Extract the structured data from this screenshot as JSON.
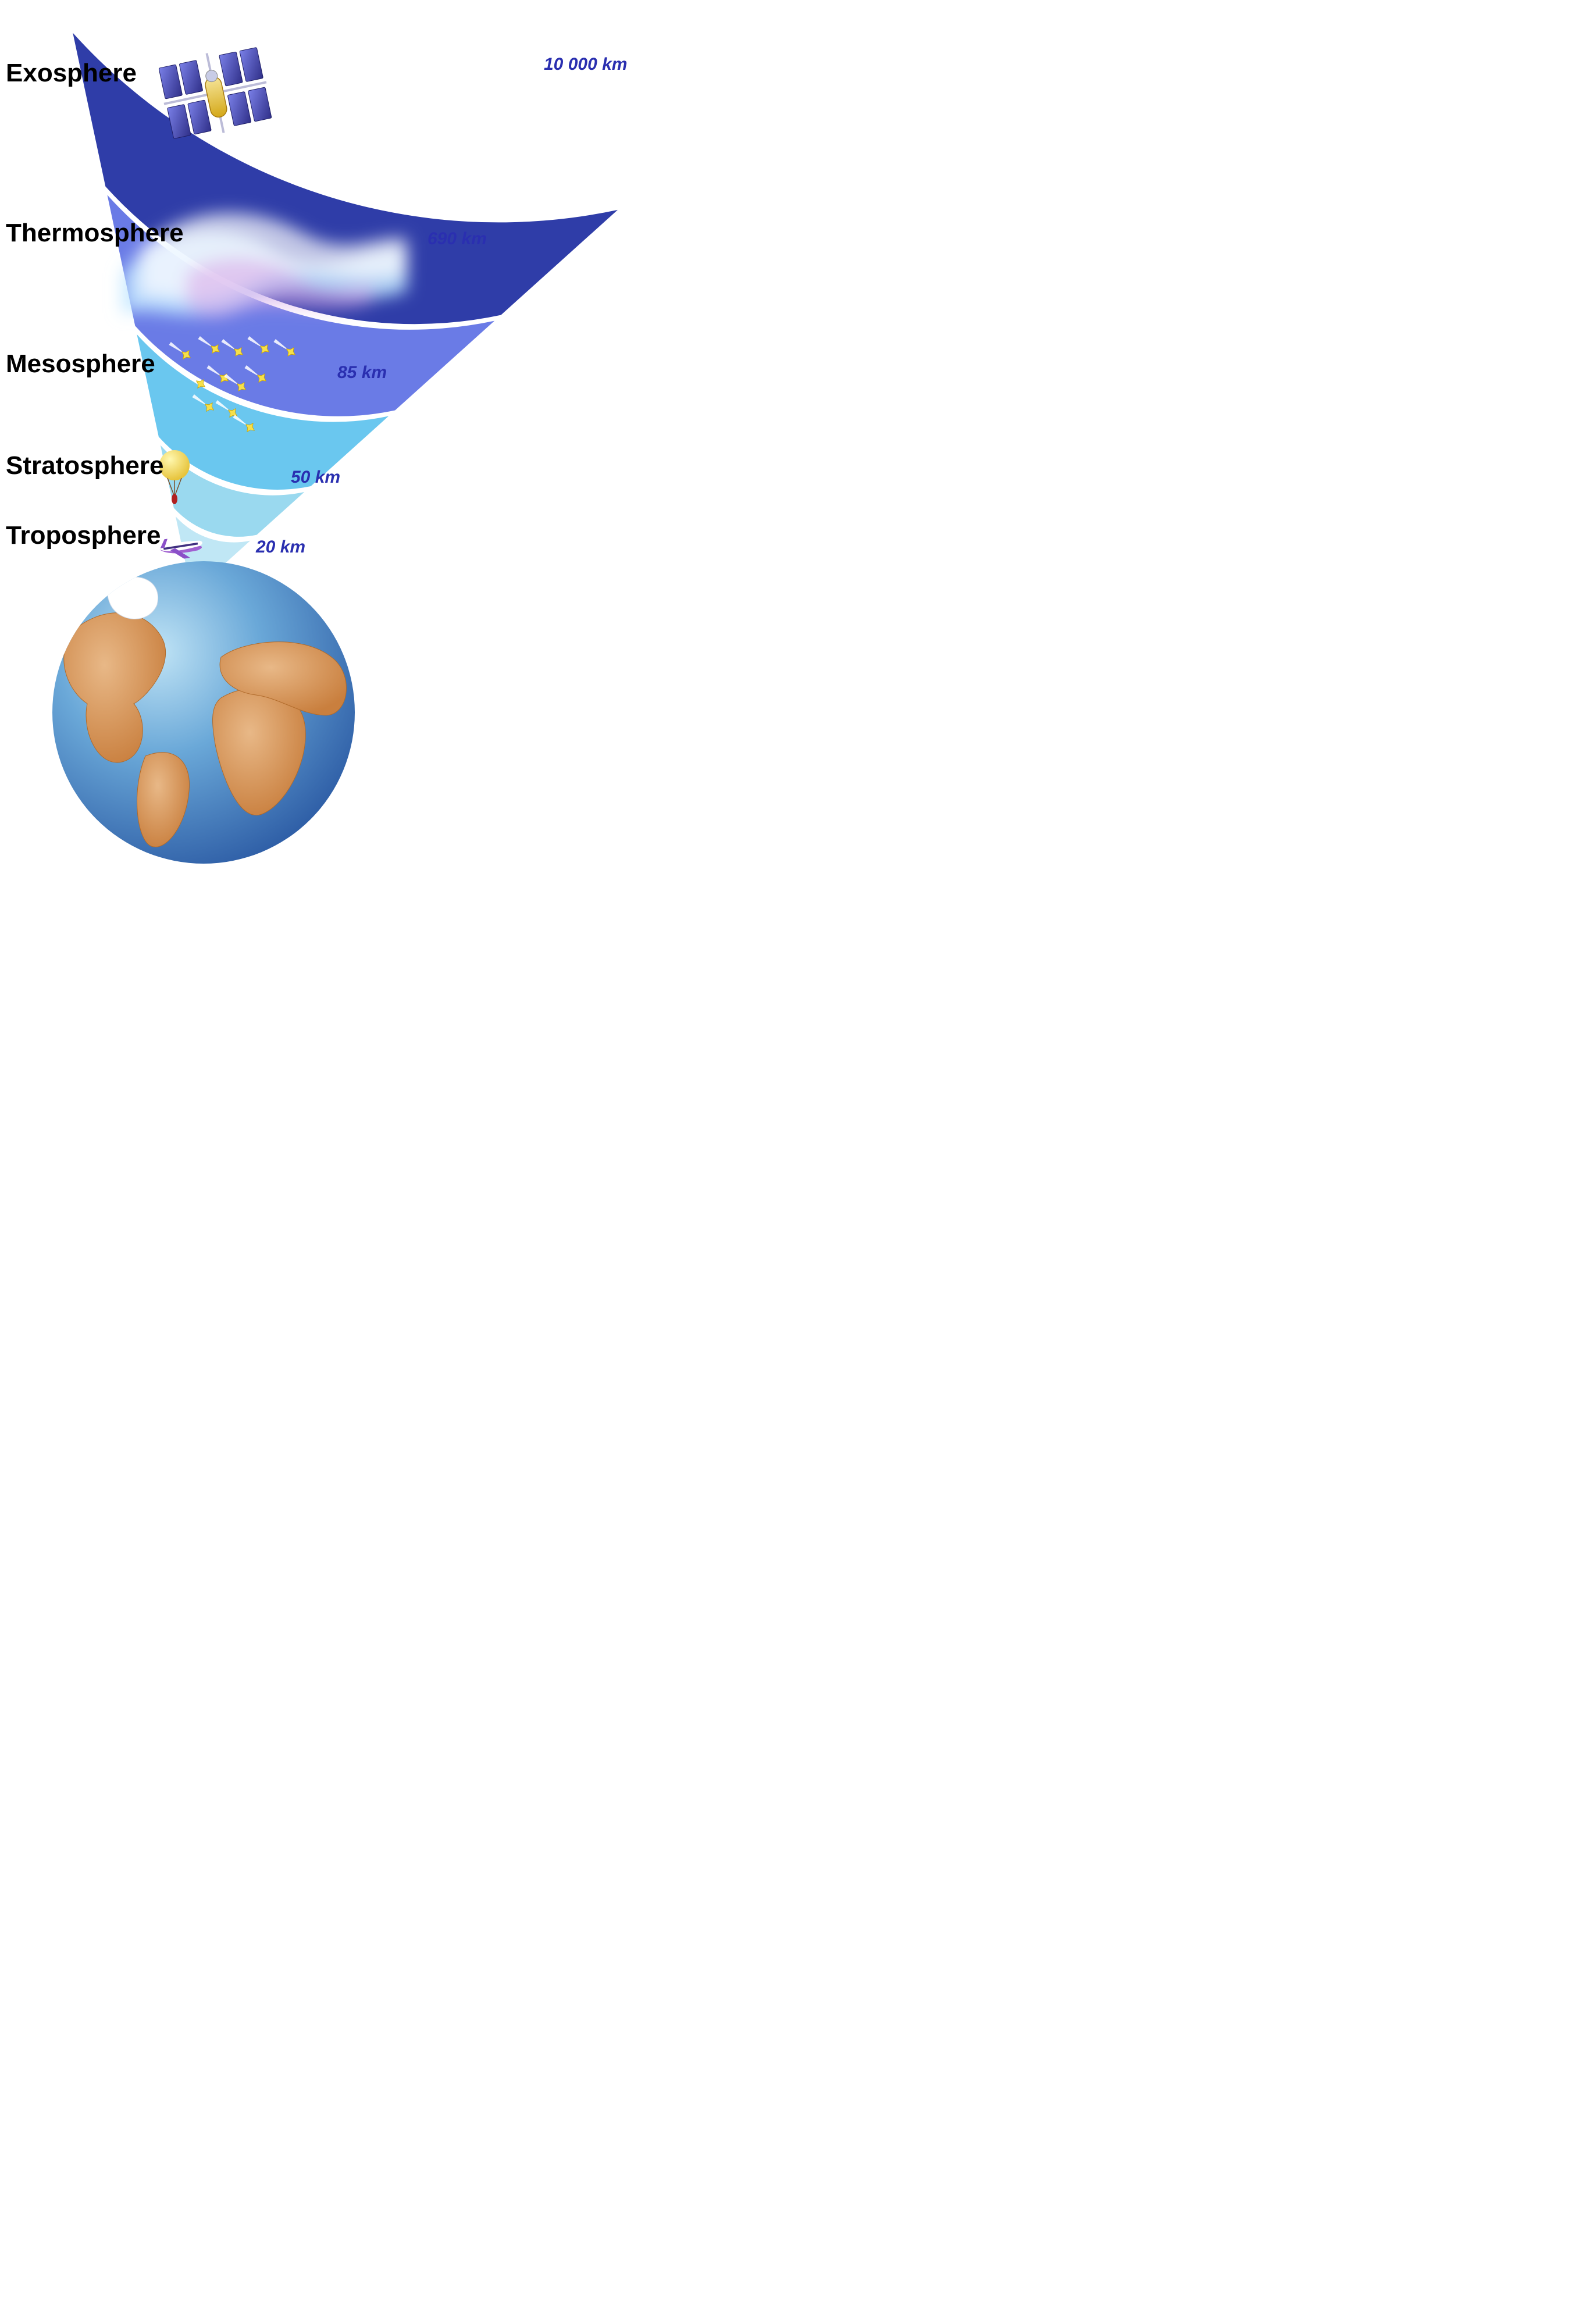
{
  "diagram": {
    "type": "infographic",
    "background_color": "#ffffff",
    "wedge_gap_color": "#ffffff",
    "label_font_family": "Arial, Helvetica, sans-serif",
    "label_font_weight": "bold",
    "label_font_size": 44,
    "label_color": "#000000",
    "altitude_font_size": 30,
    "altitude_font_style": "italic",
    "altitude_font_weight": "bold",
    "altitude_color": "#2a2fb0",
    "layers": [
      {
        "id": "exosphere",
        "name": "Exosphere",
        "altitude": "10 000 km",
        "fill": "#2f3da8",
        "icon": "satellite",
        "stars": true
      },
      {
        "id": "thermosphere",
        "name": "Thermosphere",
        "altitude": "690 km",
        "fill": "#6a7be6",
        "icon": "aurora"
      },
      {
        "id": "mesosphere",
        "name": "Mesosphere",
        "altitude": "85 km",
        "fill": "#6ac7ef",
        "icon": "meteors"
      },
      {
        "id": "stratosphere",
        "name": "Stratosphere",
        "altitude": "50 km",
        "fill": "#9ad9ef",
        "icon": "balloon"
      },
      {
        "id": "troposphere",
        "name": "Troposphere",
        "altitude": "20 km",
        "fill": "#c0e7f5",
        "icon": "airplane"
      }
    ],
    "earth": {
      "ocean_gradient": [
        "#9fd0ef",
        "#2f5fa7"
      ],
      "land_fill": "#d99857",
      "land_highlight": "#e8b887",
      "ice_fill": "#ffffff"
    },
    "meteor": {
      "tail": "#ffffff",
      "head_fill": "#f6e04a",
      "head_stroke": "#caa300"
    },
    "balloon": {
      "fill": "#f6e04a",
      "highlight": "#fff8b0",
      "rope": "#7a4f2a",
      "payload": "#b02020"
    },
    "airplane": {
      "body_top": "#ffffff",
      "body_bottom": "#a060d0",
      "window_stripe": "#403080",
      "wing": "#8a50c8"
    },
    "satellite": {
      "body": "#e7c43c",
      "body_light": "#f6e59a",
      "panel": "#4a4fb8",
      "panel_dark": "#2f2f88",
      "strut": "#bcbcd8"
    },
    "star_color": "#ffffff"
  }
}
